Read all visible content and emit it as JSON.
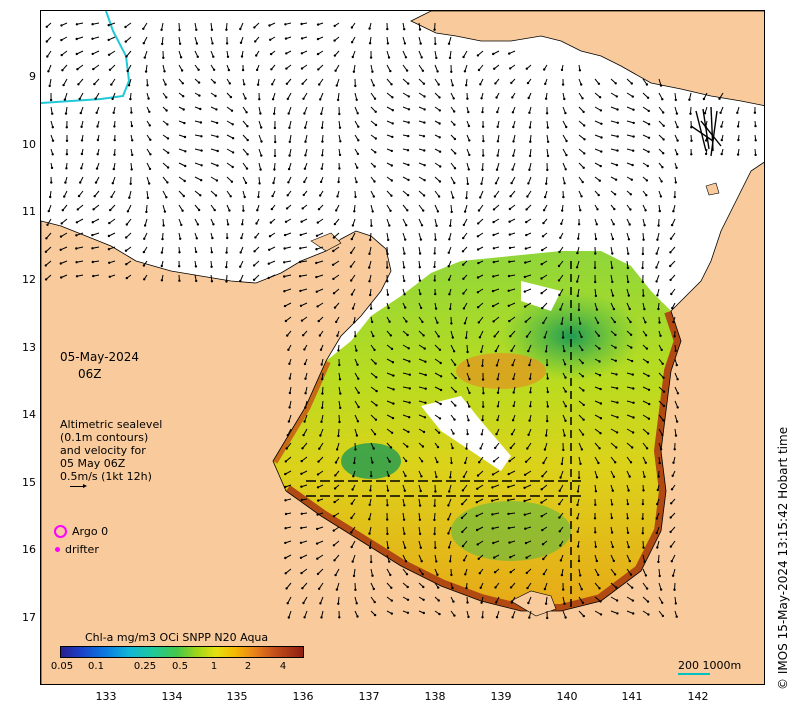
{
  "map": {
    "date": "05-May-2024",
    "time": "06Z",
    "legend_lines": [
      "Altimetric sealevel",
      "(0.1m contours)",
      "and velocity for",
      "05 May 06Z",
      "0.5m/s (1kt 12h)"
    ],
    "argo_label": "Argo 0",
    "drifter_label": "drifter",
    "colorbar_title": "Chl-a mg/m3 OCi SNPP N20 Aqua",
    "colorbar_ticks": [
      "0.05",
      "0.1",
      "0.25",
      "0.5",
      "1",
      "2",
      "4"
    ],
    "scale_label": "200  1000m",
    "credit": "© IMOS 15-May-2024 13:15:42 Hobart time",
    "y_ticks": [
      "9",
      "10",
      "11",
      "12",
      "13",
      "14",
      "15",
      "16",
      "17"
    ],
    "x_ticks": [
      "133",
      "134",
      "135",
      "136",
      "137",
      "138",
      "139",
      "140",
      "141",
      "142"
    ],
    "colors": {
      "land": "#f9cb9c",
      "ocean_nodata": "#ffffff",
      "contour_cyan": "#20c8d8",
      "argo_magenta": "#ff00ff",
      "chl_low": "#2db84a",
      "chl_mid": "#d8d818",
      "chl_high": "#e07a10",
      "chl_coastal": "#9a3010"
    }
  }
}
